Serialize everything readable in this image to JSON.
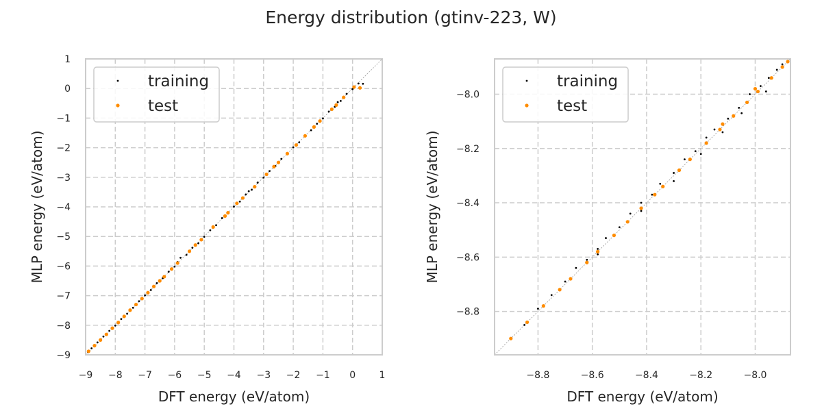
{
  "title": "Energy distribution (gtinv-223, W)",
  "colors": {
    "training": "#000000",
    "test": "#ff8c00"
  },
  "chart_data": [
    {
      "type": "scatter",
      "xlabel": "DFT energy (eV/atom)",
      "ylabel": "MLP energy (eV/atom)",
      "xlim": [
        -9,
        1
      ],
      "ylim": [
        -9,
        1
      ],
      "xticks": [
        "−9",
        "−8",
        "−7",
        "−6",
        "−5",
        "−4",
        "−3",
        "−2",
        "−1",
        "0",
        "1"
      ],
      "yticks": [
        "−9",
        "−8",
        "−7",
        "−6",
        "−5",
        "−4",
        "−3",
        "−2",
        "−1",
        "0",
        "1"
      ],
      "grid": true,
      "diagonal": true,
      "legend": {
        "placement": "upper-left",
        "entries": [
          "training",
          "test"
        ]
      },
      "series": [
        {
          "name": "training",
          "color": "#000000",
          "points": [
            [
              -8.92,
              -8.91
            ],
            [
              -8.8,
              -8.78
            ],
            [
              -8.6,
              -8.58
            ],
            [
              -8.4,
              -8.38
            ],
            [
              -8.2,
              -8.19
            ],
            [
              -8.0,
              -8.01
            ],
            [
              -7.8,
              -7.79
            ],
            [
              -7.6,
              -7.61
            ],
            [
              -7.4,
              -7.41
            ],
            [
              -7.2,
              -7.19
            ],
            [
              -7.0,
              -6.99
            ],
            [
              -6.8,
              -6.81
            ],
            [
              -6.6,
              -6.58
            ],
            [
              -6.4,
              -6.41
            ],
            [
              -6.2,
              -6.19
            ],
            [
              -6.0,
              -6.02
            ],
            [
              -5.9,
              -5.86
            ],
            [
              -5.8,
              -5.72
            ],
            [
              -5.6,
              -5.62
            ],
            [
              -5.4,
              -5.38
            ],
            [
              -5.2,
              -5.23
            ],
            [
              -5.0,
              -5.01
            ],
            [
              -4.8,
              -4.79
            ],
            [
              -4.6,
              -4.62
            ],
            [
              -4.4,
              -4.38
            ],
            [
              -4.2,
              -4.21
            ],
            [
              -4.0,
              -3.99
            ],
            [
              -3.8,
              -3.82
            ],
            [
              -3.6,
              -3.58
            ],
            [
              -3.5,
              -3.47
            ],
            [
              -3.4,
              -3.42
            ],
            [
              -3.2,
              -3.18
            ],
            [
              -3.0,
              -3.01
            ],
            [
              -2.8,
              -2.79
            ],
            [
              -2.6,
              -2.62
            ],
            [
              -2.4,
              -2.38
            ],
            [
              -2.2,
              -2.21
            ],
            [
              -2.0,
              -1.99
            ],
            [
              -1.8,
              -1.82
            ],
            [
              -1.6,
              -1.58
            ],
            [
              -1.4,
              -1.41
            ],
            [
              -1.2,
              -1.19
            ],
            [
              -1.0,
              -1.01
            ],
            [
              -0.8,
              -0.78
            ],
            [
              -0.6,
              -0.62
            ],
            [
              -0.5,
              -0.46
            ],
            [
              -0.4,
              -0.42
            ],
            [
              -0.2,
              -0.18
            ],
            [
              0.0,
              -0.02
            ],
            [
              0.2,
              0.17
            ],
            [
              0.35,
              0.16
            ]
          ]
        },
        {
          "name": "test",
          "color": "#ff8c00",
          "points": [
            [
              -8.9,
              -8.88
            ],
            [
              -8.7,
              -8.69
            ],
            [
              -8.5,
              -8.5
            ],
            [
              -8.3,
              -8.31
            ],
            [
              -8.1,
              -8.1
            ],
            [
              -7.9,
              -7.91
            ],
            [
              -7.7,
              -7.7
            ],
            [
              -7.5,
              -7.49
            ],
            [
              -7.3,
              -7.3
            ],
            [
              -7.1,
              -7.1
            ],
            [
              -6.9,
              -6.9
            ],
            [
              -6.7,
              -6.69
            ],
            [
              -6.5,
              -6.5
            ],
            [
              -6.35,
              -6.36
            ],
            [
              -6.1,
              -6.1
            ],
            [
              -5.9,
              -5.9
            ],
            [
              -5.5,
              -5.5
            ],
            [
              -5.3,
              -5.29
            ],
            [
              -5.1,
              -5.11
            ],
            [
              -4.7,
              -4.68
            ],
            [
              -4.3,
              -4.31
            ],
            [
              -4.2,
              -4.2
            ],
            [
              -3.9,
              -3.88
            ],
            [
              -3.7,
              -3.7
            ],
            [
              -3.3,
              -3.32
            ],
            [
              -2.9,
              -2.9
            ],
            [
              -2.65,
              -2.64
            ],
            [
              -2.5,
              -2.5
            ],
            [
              -2.2,
              -2.2
            ],
            [
              -1.9,
              -1.91
            ],
            [
              -1.6,
              -1.6
            ],
            [
              -1.3,
              -1.3
            ],
            [
              -1.1,
              -1.1
            ],
            [
              -0.7,
              -0.7
            ],
            [
              -0.55,
              -0.56
            ],
            [
              -0.3,
              -0.3
            ],
            [
              0.05,
              0.05
            ],
            [
              0.25,
              0.02
            ]
          ]
        }
      ]
    },
    {
      "type": "scatter",
      "xlabel": "DFT energy (eV/atom)",
      "ylabel": "MLP energy (eV/atom)",
      "xlim": [
        -8.96,
        -7.87
      ],
      "ylim": [
        -8.96,
        -7.87
      ],
      "xticks": [
        "−8.8",
        "−8.6",
        "−8.4",
        "−8.2",
        "−8.0"
      ],
      "yticks": [
        "−8.8",
        "−8.6",
        "−8.4",
        "−8.2",
        "−8.0"
      ],
      "tick_values": [
        -8.8,
        -8.6,
        -8.4,
        -8.2,
        -8.0
      ],
      "grid": true,
      "diagonal": true,
      "legend": {
        "placement": "upper-left",
        "entries": [
          "training",
          "test"
        ]
      },
      "series": [
        {
          "name": "training",
          "color": "#000000",
          "points": [
            [
              -8.9,
              -8.9
            ],
            [
              -8.85,
              -8.85
            ],
            [
              -8.8,
              -8.79
            ],
            [
              -8.75,
              -8.74
            ],
            [
              -8.7,
              -8.69
            ],
            [
              -8.66,
              -8.64
            ],
            [
              -8.62,
              -8.61
            ],
            [
              -8.58,
              -8.57
            ],
            [
              -8.55,
              -8.53
            ],
            [
              -8.5,
              -8.49
            ],
            [
              -8.46,
              -8.44
            ],
            [
              -8.42,
              -8.4
            ],
            [
              -8.38,
              -8.37
            ],
            [
              -8.35,
              -8.33
            ],
            [
              -8.3,
              -8.29
            ],
            [
              -8.26,
              -8.24
            ],
            [
              -8.22,
              -8.21
            ],
            [
              -8.18,
              -8.16
            ],
            [
              -8.15,
              -8.13
            ],
            [
              -8.1,
              -8.09
            ],
            [
              -8.06,
              -8.05
            ],
            [
              -8.02,
              -8.0
            ],
            [
              -7.98,
              -7.97
            ],
            [
              -7.95,
              -7.94
            ],
            [
              -7.92,
              -7.91
            ],
            [
              -7.9,
              -7.89
            ],
            [
              -8.42,
              -8.43
            ],
            [
              -8.3,
              -8.32
            ],
            [
              -8.12,
              -8.14
            ],
            [
              -7.96,
              -7.99
            ],
            [
              -8.58,
              -8.59
            ],
            [
              -8.2,
              -8.22
            ],
            [
              -8.05,
              -8.07
            ]
          ]
        },
        {
          "name": "test",
          "color": "#ff8c00",
          "points": [
            [
              -8.9,
              -8.9
            ],
            [
              -8.84,
              -8.84
            ],
            [
              -8.78,
              -8.78
            ],
            [
              -8.72,
              -8.72
            ],
            [
              -8.68,
              -8.68
            ],
            [
              -8.62,
              -8.62
            ],
            [
              -8.58,
              -8.58
            ],
            [
              -8.52,
              -8.52
            ],
            [
              -8.47,
              -8.47
            ],
            [
              -8.42,
              -8.42
            ],
            [
              -8.37,
              -8.37
            ],
            [
              -8.34,
              -8.34
            ],
            [
              -8.28,
              -8.28
            ],
            [
              -8.24,
              -8.24
            ],
            [
              -8.18,
              -8.18
            ],
            [
              -8.13,
              -8.13
            ],
            [
              -8.08,
              -8.08
            ],
            [
              -8.03,
              -8.03
            ],
            [
              -7.99,
              -7.99
            ],
            [
              -7.94,
              -7.94
            ],
            [
              -7.9,
              -7.9
            ],
            [
              -7.88,
              -7.88
            ],
            [
              -8.0,
              -7.98
            ],
            [
              -8.12,
              -8.11
            ]
          ]
        }
      ]
    }
  ]
}
